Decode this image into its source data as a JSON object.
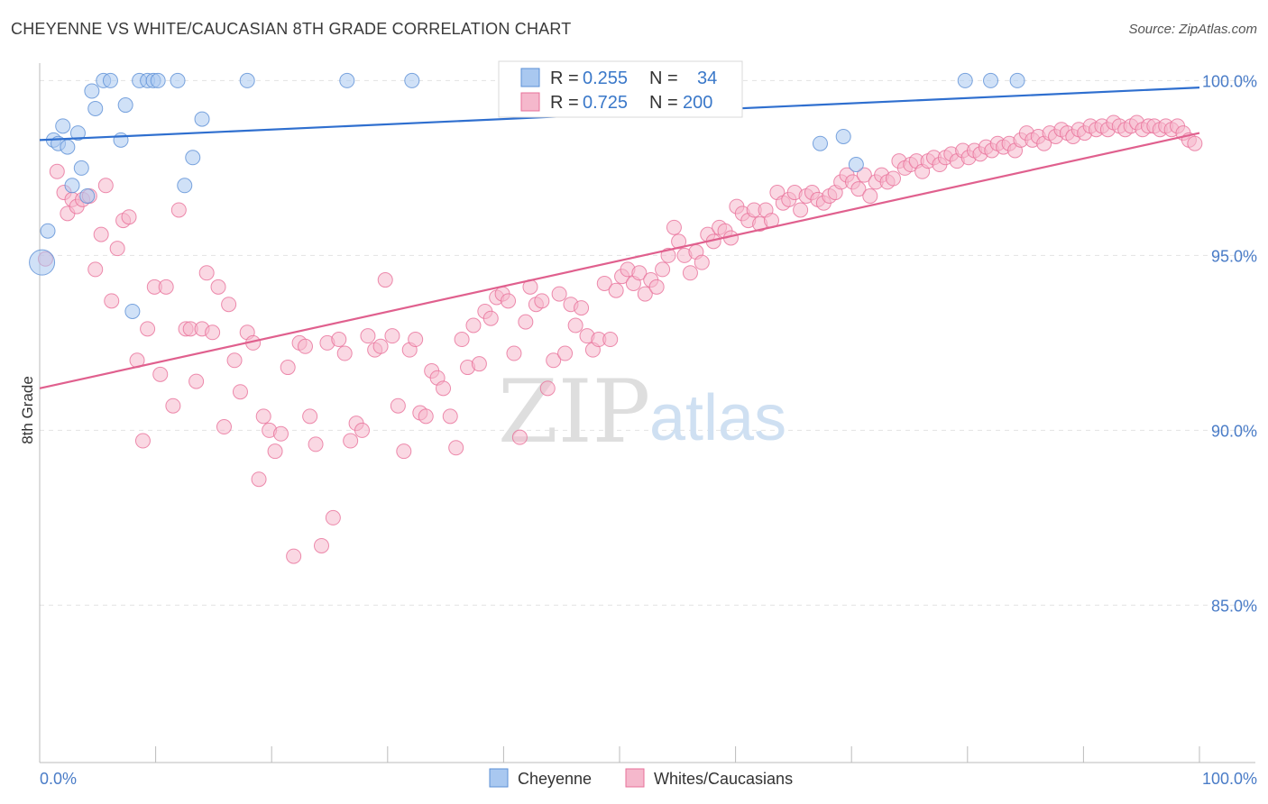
{
  "title": "CHEYENNE VS WHITE/CAUCASIAN 8TH GRADE CORRELATION CHART",
  "source": "Source: ZipAtlas.com",
  "watermark": {
    "zip": "ZIP",
    "atlas": "atlas"
  },
  "colors": {
    "cheyenne": "#5b8fd6",
    "cheyenne_fill": "#a9c8f0",
    "whites": "#e8709a",
    "whites_fill": "#f5b8cc",
    "axis_label": "#4a7cc7",
    "grid": "#e2e2e2"
  },
  "legend": {
    "rows": [
      {
        "r_label": "R = ",
        "r_value": "0.255",
        "n_label": "N = ",
        "n_value": "34"
      },
      {
        "r_label": "R = ",
        "r_value": "0.725",
        "n_label": "N = ",
        "n_value": "200"
      }
    ]
  },
  "bottom_legend": [
    "Cheyenne",
    "Whites/Caucasians"
  ],
  "chart_data": {
    "type": "scatter",
    "title": "CHEYENNE VS WHITE/CAUCASIAN 8TH GRADE CORRELATION CHART",
    "xlabel": "",
    "ylabel": "8th Grade",
    "xlim": [
      0,
      100
    ],
    "ylim": [
      80.5,
      100.5
    ],
    "y_ticks": [
      85,
      90,
      95,
      100
    ],
    "y_tick_labels": [
      "85.0%",
      "90.0%",
      "95.0%",
      "100.0%"
    ],
    "x_tick_labels": [
      "0.0%",
      "100.0%"
    ],
    "series": [
      {
        "name": "Cheyenne",
        "R": 0.255,
        "N": 34,
        "trend": {
          "x": [
            0,
            100
          ],
          "y": [
            98.3,
            99.8
          ]
        },
        "points": [
          [
            0.2,
            94.8
          ],
          [
            0.7,
            95.7
          ],
          [
            1.2,
            98.3
          ],
          [
            1.6,
            98.2
          ],
          [
            2.0,
            98.7
          ],
          [
            2.4,
            98.1
          ],
          [
            2.8,
            97.0
          ],
          [
            3.3,
            98.5
          ],
          [
            3.6,
            97.5
          ],
          [
            4.1,
            96.7
          ],
          [
            4.5,
            99.7
          ],
          [
            4.8,
            99.2
          ],
          [
            5.5,
            100.0
          ],
          [
            6.1,
            100.0
          ],
          [
            7.0,
            98.3
          ],
          [
            7.4,
            99.3
          ],
          [
            8.0,
            93.4
          ],
          [
            8.6,
            100.0
          ],
          [
            9.3,
            100.0
          ],
          [
            9.8,
            100.0
          ],
          [
            10.2,
            100.0
          ],
          [
            11.9,
            100.0
          ],
          [
            12.5,
            97.0
          ],
          [
            13.2,
            97.8
          ],
          [
            14.0,
            98.9
          ],
          [
            17.9,
            100.0
          ],
          [
            26.5,
            100.0
          ],
          [
            32.1,
            100.0
          ],
          [
            67.3,
            98.2
          ],
          [
            69.3,
            98.4
          ],
          [
            70.4,
            97.6
          ],
          [
            79.8,
            100.0
          ],
          [
            82.0,
            100.0
          ],
          [
            84.3,
            100.0
          ]
        ]
      },
      {
        "name": "Whites/Caucasians",
        "R": 0.725,
        "N": 200,
        "trend": {
          "x": [
            0,
            100
          ],
          "y": [
            91.2,
            98.5
          ]
        },
        "points": [
          [
            0.5,
            94.9
          ],
          [
            1.5,
            97.4
          ],
          [
            2.1,
            96.8
          ],
          [
            2.4,
            96.2
          ],
          [
            2.8,
            96.6
          ],
          [
            3.2,
            96.4
          ],
          [
            3.7,
            96.6
          ],
          [
            4.3,
            96.7
          ],
          [
            4.8,
            94.6
          ],
          [
            5.3,
            95.6
          ],
          [
            5.7,
            97.0
          ],
          [
            6.2,
            93.7
          ],
          [
            6.7,
            95.2
          ],
          [
            7.2,
            96.0
          ],
          [
            7.7,
            96.1
          ],
          [
            8.4,
            92.0
          ],
          [
            8.9,
            89.7
          ],
          [
            9.3,
            92.9
          ],
          [
            9.9,
            94.1
          ],
          [
            10.4,
            91.6
          ],
          [
            10.9,
            94.1
          ],
          [
            11.5,
            90.7
          ],
          [
            12.0,
            96.3
          ],
          [
            12.6,
            92.9
          ],
          [
            13.0,
            92.9
          ],
          [
            13.5,
            91.4
          ],
          [
            14.0,
            92.9
          ],
          [
            14.4,
            94.5
          ],
          [
            14.9,
            92.8
          ],
          [
            15.4,
            94.1
          ],
          [
            15.9,
            90.1
          ],
          [
            16.3,
            93.6
          ],
          [
            16.8,
            92.0
          ],
          [
            17.3,
            91.1
          ],
          [
            17.9,
            92.8
          ],
          [
            18.4,
            92.5
          ],
          [
            18.9,
            88.6
          ],
          [
            19.3,
            90.4
          ],
          [
            19.8,
            90.0
          ],
          [
            20.3,
            89.4
          ],
          [
            20.8,
            89.9
          ],
          [
            21.4,
            91.8
          ],
          [
            21.9,
            86.4
          ],
          [
            22.4,
            92.5
          ],
          [
            22.9,
            92.4
          ],
          [
            23.3,
            90.4
          ],
          [
            23.8,
            89.6
          ],
          [
            24.3,
            86.7
          ],
          [
            24.8,
            92.5
          ],
          [
            25.3,
            87.5
          ],
          [
            25.8,
            92.6
          ],
          [
            26.3,
            92.2
          ],
          [
            26.8,
            89.7
          ],
          [
            27.3,
            90.2
          ],
          [
            27.8,
            90.0
          ],
          [
            28.3,
            92.7
          ],
          [
            28.9,
            92.3
          ],
          [
            29.4,
            92.4
          ],
          [
            29.8,
            94.3
          ],
          [
            30.4,
            92.7
          ],
          [
            30.9,
            90.7
          ],
          [
            31.4,
            89.4
          ],
          [
            31.9,
            92.3
          ],
          [
            32.4,
            92.6
          ],
          [
            32.8,
            90.5
          ],
          [
            33.3,
            90.4
          ],
          [
            33.8,
            91.7
          ],
          [
            34.3,
            91.5
          ],
          [
            34.8,
            91.2
          ],
          [
            35.4,
            90.4
          ],
          [
            35.9,
            89.5
          ],
          [
            36.4,
            92.6
          ],
          [
            36.9,
            91.8
          ],
          [
            37.4,
            93.0
          ],
          [
            37.9,
            91.9
          ],
          [
            38.4,
            93.4
          ],
          [
            38.9,
            93.2
          ],
          [
            39.4,
            93.8
          ],
          [
            39.9,
            93.9
          ],
          [
            40.4,
            93.7
          ],
          [
            40.9,
            92.2
          ],
          [
            41.4,
            89.8
          ],
          [
            41.9,
            93.1
          ],
          [
            42.3,
            94.1
          ],
          [
            42.8,
            93.6
          ],
          [
            43.3,
            93.7
          ],
          [
            43.8,
            91.2
          ],
          [
            44.3,
            92.0
          ],
          [
            44.8,
            93.9
          ],
          [
            45.3,
            92.2
          ],
          [
            45.8,
            93.6
          ],
          [
            46.2,
            93.0
          ],
          [
            46.7,
            93.5
          ],
          [
            47.2,
            92.7
          ],
          [
            47.7,
            92.3
          ],
          [
            48.2,
            92.6
          ],
          [
            48.7,
            94.2
          ],
          [
            49.2,
            92.6
          ],
          [
            49.7,
            94.0
          ],
          [
            50.2,
            94.4
          ],
          [
            50.7,
            94.6
          ],
          [
            51.2,
            94.2
          ],
          [
            51.7,
            94.5
          ],
          [
            52.2,
            93.9
          ],
          [
            52.7,
            94.3
          ],
          [
            53.2,
            94.1
          ],
          [
            53.7,
            94.6
          ],
          [
            54.2,
            95.0
          ],
          [
            54.7,
            95.8
          ],
          [
            55.1,
            95.4
          ],
          [
            55.6,
            95.0
          ],
          [
            56.1,
            94.5
          ],
          [
            56.6,
            95.1
          ],
          [
            57.1,
            94.8
          ],
          [
            57.6,
            95.6
          ],
          [
            58.1,
            95.4
          ],
          [
            58.6,
            95.8
          ],
          [
            59.1,
            95.7
          ],
          [
            59.6,
            95.5
          ],
          [
            60.1,
            96.4
          ],
          [
            60.6,
            96.2
          ],
          [
            61.1,
            96.0
          ],
          [
            61.6,
            96.3
          ],
          [
            62.1,
            95.9
          ],
          [
            62.6,
            96.3
          ],
          [
            63.1,
            96.0
          ],
          [
            63.6,
            96.8
          ],
          [
            64.1,
            96.5
          ],
          [
            64.6,
            96.6
          ],
          [
            65.1,
            96.8
          ],
          [
            65.6,
            96.3
          ],
          [
            66.1,
            96.7
          ],
          [
            66.6,
            96.8
          ],
          [
            67.1,
            96.6
          ],
          [
            67.6,
            96.5
          ],
          [
            68.1,
            96.7
          ],
          [
            68.6,
            96.8
          ],
          [
            69.1,
            97.1
          ],
          [
            69.6,
            97.3
          ],
          [
            70.1,
            97.1
          ],
          [
            70.6,
            96.9
          ],
          [
            71.1,
            97.3
          ],
          [
            71.6,
            96.7
          ],
          [
            72.1,
            97.1
          ],
          [
            72.6,
            97.3
          ],
          [
            73.1,
            97.1
          ],
          [
            73.6,
            97.2
          ],
          [
            74.1,
            97.7
          ],
          [
            74.6,
            97.5
          ],
          [
            75.1,
            97.6
          ],
          [
            75.6,
            97.7
          ],
          [
            76.1,
            97.4
          ],
          [
            76.6,
            97.7
          ],
          [
            77.1,
            97.8
          ],
          [
            77.6,
            97.6
          ],
          [
            78.1,
            97.8
          ],
          [
            78.6,
            97.9
          ],
          [
            79.1,
            97.7
          ],
          [
            79.6,
            98.0
          ],
          [
            80.1,
            97.8
          ],
          [
            80.6,
            98.0
          ],
          [
            81.1,
            97.9
          ],
          [
            81.6,
            98.1
          ],
          [
            82.1,
            98.0
          ],
          [
            82.6,
            98.2
          ],
          [
            83.1,
            98.1
          ],
          [
            83.6,
            98.2
          ],
          [
            84.1,
            98.0
          ],
          [
            84.6,
            98.3
          ],
          [
            85.1,
            98.5
          ],
          [
            85.6,
            98.3
          ],
          [
            86.1,
            98.4
          ],
          [
            86.6,
            98.2
          ],
          [
            87.1,
            98.5
          ],
          [
            87.6,
            98.4
          ],
          [
            88.1,
            98.6
          ],
          [
            88.6,
            98.5
          ],
          [
            89.1,
            98.4
          ],
          [
            89.6,
            98.6
          ],
          [
            90.1,
            98.5
          ],
          [
            90.6,
            98.7
          ],
          [
            91.1,
            98.6
          ],
          [
            91.6,
            98.7
          ],
          [
            92.1,
            98.6
          ],
          [
            92.6,
            98.8
          ],
          [
            93.1,
            98.7
          ],
          [
            93.6,
            98.6
          ],
          [
            94.1,
            98.7
          ],
          [
            94.6,
            98.8
          ],
          [
            95.1,
            98.6
          ],
          [
            95.6,
            98.7
          ],
          [
            96.1,
            98.7
          ],
          [
            96.6,
            98.6
          ],
          [
            97.1,
            98.7
          ],
          [
            97.6,
            98.6
          ],
          [
            98.1,
            98.7
          ],
          [
            98.6,
            98.5
          ],
          [
            99.1,
            98.3
          ],
          [
            99.6,
            98.2
          ]
        ]
      }
    ]
  }
}
